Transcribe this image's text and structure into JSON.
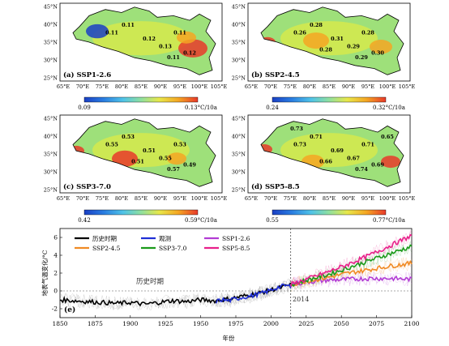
{
  "panels": [
    {
      "label": "(a) SSP1-2.6",
      "cbar_min": "0.09",
      "cbar_max": "0.13°C/10a",
      "contours": [
        "0.11",
        "0.11",
        "0.12",
        "0.13",
        "0.11",
        "0.12",
        "0.11"
      ],
      "hot": "#e8392a"
    },
    {
      "label": "(b) SSP2-4.5",
      "cbar_min": "0.24",
      "cbar_max": "0.32°C/10a",
      "contours": [
        "0.26",
        "0.28",
        "0.31",
        "0.29",
        "0.28",
        "0.30",
        "0.29",
        "0.28"
      ],
      "hot": "#e8392a"
    },
    {
      "label": "(c) SSP3-7.0",
      "cbar_min": "0.42",
      "cbar_max": "0.59°C/10a",
      "contours": [
        "0.55",
        "0.53",
        "0.51",
        "0.55",
        "0.53",
        "0.49",
        "0.57",
        "0.51"
      ],
      "hot": "#d42a1e"
    },
    {
      "label": "(d) SSP5-8.5",
      "cbar_min": "0.55",
      "cbar_max": "0.77°C/10a",
      "contours": [
        "0.73",
        "0.71",
        "0.69",
        "0.67",
        "0.71",
        "0.69",
        "0.74",
        "0.66",
        "0.73",
        "0.65"
      ],
      "hot": "#d42a1e"
    }
  ],
  "map_lon_ticks": [
    "65°E",
    "70°E",
    "75°E",
    "80°E",
    "85°E",
    "90°E",
    "95°E",
    "100°E",
    "105°E"
  ],
  "map_lat_ticks": [
    "45°N",
    "40°N",
    "35°N",
    "30°N",
    "25°N"
  ],
  "colorbar_stops": [
    "#1a3fc4",
    "#2a7de1",
    "#4fc3e8",
    "#8fe0a0",
    "#e8e84a",
    "#f5a623",
    "#e8392a"
  ],
  "chart_data": {
    "type": "line",
    "panel_label": "(e)",
    "xlabel": "年份",
    "ylabel": "地表气温变化/°C",
    "xlim": [
      1850,
      2100
    ],
    "ylim": [
      -3,
      7
    ],
    "x_ticks": [
      "1850",
      "1875",
      "1900",
      "1925",
      "1950",
      "1975",
      "2000",
      "2025",
      "2050",
      "2075",
      "2100"
    ],
    "y_ticks": [
      "6",
      "4",
      "2",
      "0",
      "-2"
    ],
    "divider_year": 2014,
    "divider_label": "2014",
    "period_label": "历史时期",
    "legend": [
      "历史时期",
      "观测",
      "SSP1-2.6",
      "SSP2-4.5",
      "SSP3-7.0",
      "SSP5-8.5"
    ],
    "series": [
      {
        "name": "历史时期",
        "color": "#000000",
        "x": [
          1850,
          1860,
          1870,
          1880,
          1890,
          1900,
          1910,
          1920,
          1930,
          1940,
          1950,
          1960,
          1970,
          1980,
          1990,
          2000,
          2010,
          2014
        ],
        "values": [
          -1.0,
          -1.1,
          -1.2,
          -1.3,
          -1.4,
          -1.3,
          -1.5,
          -1.3,
          -1.1,
          -1.2,
          -1.0,
          -1.1,
          -0.9,
          -0.6,
          -0.3,
          0.1,
          0.5,
          0.7
        ]
      },
      {
        "name": "观测",
        "color": "#1f2fd6",
        "x": [
          1961,
          1965,
          1970,
          1975,
          1980,
          1985,
          1990,
          1995,
          2000,
          2005,
          2010,
          2014
        ],
        "values": [
          -1.2,
          -1.0,
          -1.1,
          -0.9,
          -0.7,
          -0.6,
          -0.4,
          -0.2,
          0.1,
          0.4,
          0.6,
          0.5
        ]
      },
      {
        "name": "SSP1-2.6",
        "color": "#b23cd4",
        "x": [
          2014,
          2025,
          2040,
          2055,
          2070,
          2085,
          2100
        ],
        "values": [
          0.7,
          1.0,
          1.2,
          1.3,
          1.4,
          1.4,
          1.3
        ]
      },
      {
        "name": "SSP2-4.5",
        "color": "#f08a24",
        "x": [
          2014,
          2025,
          2040,
          2055,
          2070,
          2085,
          2100
        ],
        "values": [
          0.7,
          1.1,
          1.5,
          2.0,
          2.4,
          2.8,
          3.1
        ]
      },
      {
        "name": "SSP3-7.0",
        "color": "#1a9a1a",
        "x": [
          2014,
          2025,
          2040,
          2055,
          2070,
          2085,
          2100
        ],
        "values": [
          0.7,
          1.2,
          1.8,
          2.6,
          3.4,
          4.2,
          5.0
        ]
      },
      {
        "name": "SSP5-8.5",
        "color": "#e8208a",
        "x": [
          2014,
          2025,
          2040,
          2055,
          2070,
          2085,
          2100
        ],
        "values": [
          0.7,
          1.3,
          2.1,
          3.0,
          4.0,
          5.1,
          6.2
        ]
      }
    ]
  }
}
